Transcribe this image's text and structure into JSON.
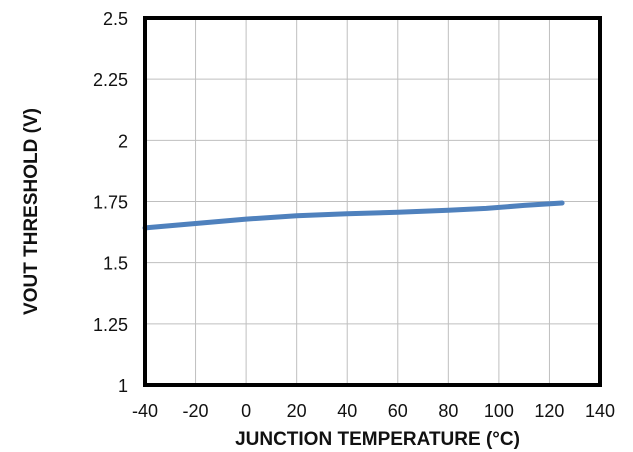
{
  "chart_data": {
    "type": "line",
    "xlabel": "JUNCTION  TEMPERATURE  (°C)",
    "ylabel": "VOUT  THRESHOLD  (V)",
    "xlim": [
      -40,
      140
    ],
    "ylim": [
      1,
      2.5
    ],
    "xticks": [
      -40,
      -20,
      0,
      20,
      40,
      60,
      80,
      100,
      120,
      140
    ],
    "xtick_labels": [
      "-40",
      "-20",
      "0",
      "20",
      "40",
      "60",
      "80",
      "100",
      "120",
      "140"
    ],
    "yticks": [
      1,
      1.25,
      1.5,
      1.75,
      2,
      2.25,
      2.5
    ],
    "ytick_labels": [
      "1",
      "1.25",
      "1.5",
      "1.75",
      "2",
      "2.25",
      "2.5"
    ],
    "grid": true,
    "series": [
      {
        "color": "#4f81bd",
        "x": [
          -40,
          -20,
          0,
          20,
          40,
          60,
          80,
          95,
          110,
          125
        ],
        "y": [
          1.642,
          1.66,
          1.678,
          1.692,
          1.7,
          1.706,
          1.714,
          1.722,
          1.734,
          1.744
        ]
      }
    ]
  }
}
